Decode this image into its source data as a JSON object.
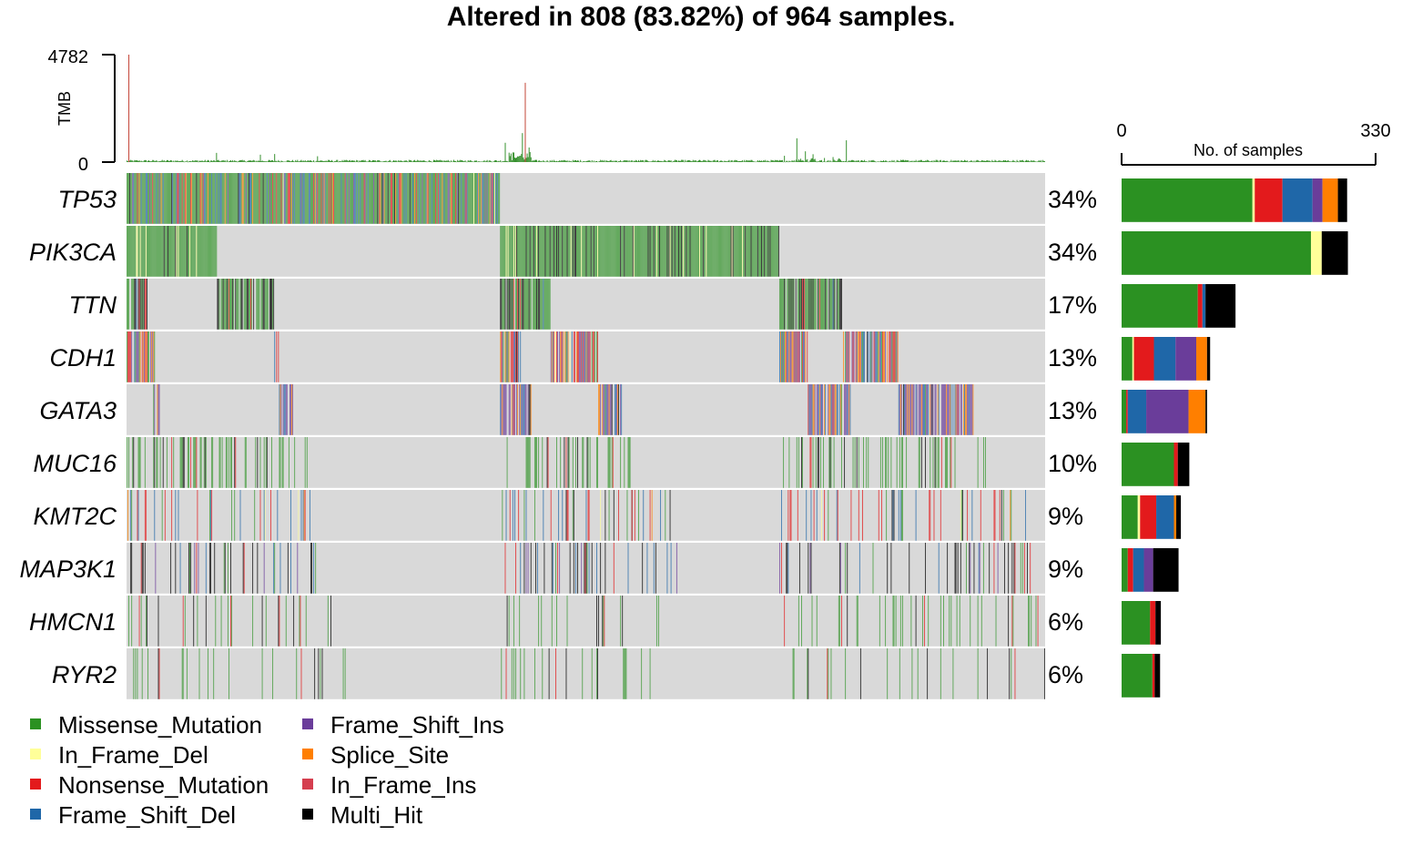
{
  "chart_data": {
    "type": "heatmap",
    "title": "Altered in 808 (83.82%) of 964 samples.",
    "tmb": {
      "label": "TMB",
      "ylim": [
        0,
        4782
      ],
      "tick_labels": [
        "4782",
        "0"
      ],
      "spikes": [
        {
          "sample": 2,
          "value": 4782
        },
        {
          "sample": 94,
          "value": 410
        },
        {
          "sample": 140,
          "value": 330
        },
        {
          "sample": 155,
          "value": 360
        },
        {
          "sample": 200,
          "value": 260
        },
        {
          "sample": 397,
          "value": 860
        },
        {
          "sample": 405,
          "value": 430
        },
        {
          "sample": 415,
          "value": 1290
        },
        {
          "sample": 418,
          "value": 3530
        },
        {
          "sample": 422,
          "value": 650
        },
        {
          "sample": 703,
          "value": 1060
        },
        {
          "sample": 712,
          "value": 480
        },
        {
          "sample": 720,
          "value": 350
        },
        {
          "sample": 755,
          "value": 970
        },
        {
          "sample": 690,
          "value": 280
        }
      ]
    },
    "genes": [
      {
        "name": "TP53",
        "pct": "34%",
        "counts": {
          "Missense_Mutation": 170,
          "In_Frame_Del": 3,
          "Nonsense_Mutation": 36,
          "Frame_Shift_Del": 39,
          "Frame_Shift_Ins": 13,
          "Splice_Site": 20,
          "In_Frame_Ins": 0,
          "Multi_Hit": 12
        }
      },
      {
        "name": "PIK3CA",
        "pct": "34%",
        "counts": {
          "Missense_Mutation": 246,
          "In_Frame_Del": 14,
          "Nonsense_Mutation": 0,
          "Frame_Shift_Del": 0,
          "Frame_Shift_Ins": 0,
          "Splice_Site": 0,
          "In_Frame_Ins": 0,
          "Multi_Hit": 34
        }
      },
      {
        "name": "TTN",
        "pct": "17%",
        "counts": {
          "Missense_Mutation": 99,
          "In_Frame_Del": 0,
          "Nonsense_Mutation": 6,
          "Frame_Shift_Del": 4,
          "Frame_Shift_Ins": 0,
          "Splice_Site": 0,
          "In_Frame_Ins": 0,
          "Multi_Hit": 39
        }
      },
      {
        "name": "CDH1",
        "pct": "13%",
        "counts": {
          "Missense_Mutation": 14,
          "In_Frame_Del": 2,
          "Nonsense_Mutation": 26,
          "Frame_Shift_Del": 28,
          "Frame_Shift_Ins": 27,
          "Splice_Site": 14,
          "In_Frame_Ins": 0,
          "Multi_Hit": 4
        }
      },
      {
        "name": "GATA3",
        "pct": "13%",
        "counts": {
          "Missense_Mutation": 6,
          "In_Frame_Del": 0,
          "Nonsense_Mutation": 2,
          "Frame_Shift_Del": 24,
          "Frame_Shift_Ins": 55,
          "Splice_Site": 22,
          "In_Frame_Ins": 0,
          "Multi_Hit": 2
        }
      },
      {
        "name": "MUC16",
        "pct": "10%",
        "counts": {
          "Missense_Mutation": 68,
          "In_Frame_Del": 0,
          "Nonsense_Mutation": 5,
          "Frame_Shift_Del": 0,
          "Frame_Shift_Ins": 0,
          "Splice_Site": 0,
          "In_Frame_Ins": 0,
          "Multi_Hit": 15
        }
      },
      {
        "name": "KMT2C",
        "pct": "9%",
        "counts": {
          "Missense_Mutation": 21,
          "In_Frame_Del": 3,
          "Nonsense_Mutation": 21,
          "Frame_Shift_Del": 23,
          "Frame_Shift_Ins": 0,
          "Splice_Site": 3,
          "In_Frame_Ins": 0,
          "Multi_Hit": 6
        }
      },
      {
        "name": "MAP3K1",
        "pct": "9%",
        "counts": {
          "Missense_Mutation": 8,
          "In_Frame_Del": 0,
          "Nonsense_Mutation": 7,
          "Frame_Shift_Del": 14,
          "Frame_Shift_Ins": 12,
          "Splice_Site": 0,
          "In_Frame_Ins": 0,
          "Multi_Hit": 33
        }
      },
      {
        "name": "HMCN1",
        "pct": "6%",
        "counts": {
          "Missense_Mutation": 37,
          "In_Frame_Del": 0,
          "Nonsense_Mutation": 7,
          "Frame_Shift_Del": 0,
          "Frame_Shift_Ins": 0,
          "Splice_Site": 0,
          "In_Frame_Ins": 0,
          "Multi_Hit": 7
        }
      },
      {
        "name": "RYR2",
        "pct": "6%",
        "counts": {
          "Missense_Mutation": 40,
          "In_Frame_Del": 0,
          "Nonsense_Mutation": 3,
          "Frame_Shift_Del": 0,
          "Frame_Shift_Ins": 0,
          "Splice_Site": 0,
          "In_Frame_Ins": 0,
          "Multi_Hit": 7
        }
      }
    ],
    "side_bar": {
      "xlabel": "No. of samples",
      "xlim": [
        0,
        330
      ],
      "tick_labels": [
        "0",
        "330"
      ]
    },
    "legend": [
      {
        "label": "Missense_Mutation",
        "color": "#2b9122"
      },
      {
        "label": "In_Frame_Del",
        "color": "#ffff99"
      },
      {
        "label": "Nonsense_Mutation",
        "color": "#e31a1c"
      },
      {
        "label": "Frame_Shift_Del",
        "color": "#1f67a8"
      },
      {
        "label": "Frame_Shift_Ins",
        "color": "#6a3d9a"
      },
      {
        "label": "Splice_Site",
        "color": "#ff7f00"
      },
      {
        "label": "In_Frame_Ins",
        "color": "#d53e4f"
      },
      {
        "label": "Multi_Hit",
        "color": "#000000"
      }
    ],
    "background_color": "#d9d9d9",
    "num_samples": 964
  }
}
